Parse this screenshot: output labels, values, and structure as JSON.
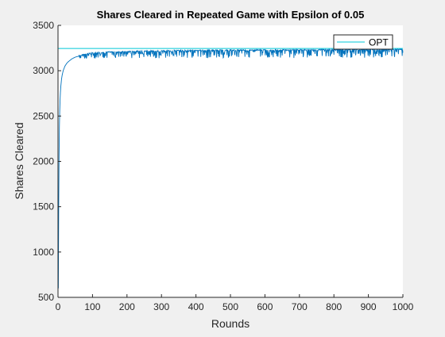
{
  "colors": {
    "figure_bg": "#f0f0f0",
    "axes_bg": "#ffffff",
    "axis_color": "#262626",
    "series_color": "#0072bd",
    "opt_color": "#00c8d8"
  },
  "chart_data": {
    "type": "line",
    "title": "Shares Cleared in Repeated Game with Epsilon of 0.05",
    "xlabel": "Rounds",
    "ylabel": "Shares Cleared",
    "xlim": [
      0,
      1000
    ],
    "ylim": [
      500,
      3500
    ],
    "xticks": [
      0,
      100,
      200,
      300,
      400,
      500,
      600,
      700,
      800,
      900,
      1000
    ],
    "yticks": [
      500,
      1000,
      1500,
      2000,
      2500,
      3000,
      3500
    ],
    "grid": false,
    "legend": {
      "location": "top-right",
      "entries": [
        "OPT"
      ]
    },
    "series": [
      {
        "style": "noisy-line",
        "x": [
          1,
          2,
          3,
          4,
          5,
          6,
          7,
          8,
          10,
          12,
          15,
          20,
          25,
          30,
          40,
          50,
          60,
          80,
          100,
          125,
          150,
          200,
          250,
          300,
          350,
          400,
          450,
          500,
          550,
          600,
          650,
          700,
          750,
          800,
          850,
          900,
          950,
          1000
        ],
        "values": [
          600,
          1500,
          2050,
          2380,
          2560,
          2680,
          2760,
          2820,
          2900,
          2950,
          3000,
          3050,
          3080,
          3100,
          3130,
          3150,
          3160,
          3180,
          3190,
          3195,
          3200,
          3205,
          3210,
          3213,
          3216,
          3218,
          3220,
          3221,
          3222,
          3223,
          3224,
          3225,
          3226,
          3227,
          3228,
          3229,
          3230,
          3230
        ],
        "noise_dips_to": 3130
      },
      {
        "name": "OPT",
        "style": "constant",
        "x": [
          0,
          1000
        ],
        "values": [
          3245,
          3245
        ]
      }
    ]
  }
}
